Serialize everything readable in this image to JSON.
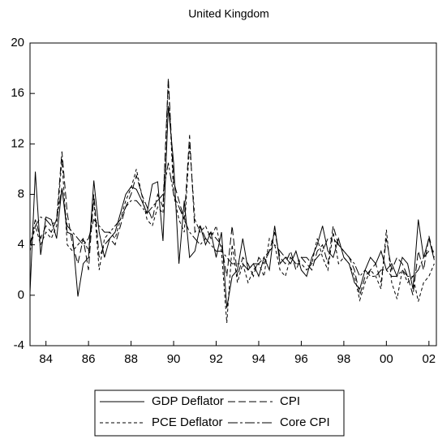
{
  "chart_data": {
    "type": "line",
    "title": "United Kingdom",
    "x": [
      1983.25,
      1983.5,
      1983.75,
      1984,
      1984.25,
      1984.5,
      1984.75,
      1985,
      1985.25,
      1985.5,
      1985.75,
      1986,
      1986.25,
      1986.5,
      1986.75,
      1987,
      1987.25,
      1987.5,
      1987.75,
      1988,
      1988.25,
      1988.5,
      1988.75,
      1989,
      1989.25,
      1989.5,
      1989.75,
      1990,
      1990.25,
      1990.5,
      1990.75,
      1991,
      1991.25,
      1991.5,
      1991.75,
      1992,
      1992.25,
      1992.5,
      1992.75,
      1993,
      1993.25,
      1993.5,
      1993.75,
      1994,
      1994.25,
      1994.5,
      1994.75,
      1995,
      1995.25,
      1995.5,
      1995.75,
      1996,
      1996.25,
      1996.5,
      1996.75,
      1997,
      1997.25,
      1997.5,
      1997.75,
      1998,
      1998.25,
      1998.5,
      1998.75,
      1999,
      1999.25,
      1999.5,
      1999.75,
      2000,
      2000.25,
      2000.5,
      2000.75,
      2001,
      2001.25,
      2001.5,
      2001.75,
      2002,
      2002.25
    ],
    "series": [
      {
        "name": "GDP Deflator",
        "color": "#000000",
        "style": "solid",
        "values": [
          0.2,
          9.8,
          3.2,
          6.2,
          6.0,
          4.5,
          8.5,
          5.0,
          4.8,
          -0.1,
          2.5,
          3.0,
          9.1,
          5.0,
          3.0,
          4.5,
          5.0,
          6.5,
          8.0,
          8.6,
          8.4,
          7.5,
          6.5,
          8.8,
          9.0,
          4.3,
          15.0,
          10.5,
          2.5,
          7.5,
          3.0,
          3.5,
          5.5,
          4.0,
          5.0,
          3.0,
          5.0,
          -1.0,
          1.5,
          2.0,
          4.5,
          2.0,
          2.5,
          1.5,
          3.0,
          2.0,
          5.5,
          2.5,
          3.0,
          2.5,
          3.5,
          2.0,
          1.5,
          3.0,
          4.0,
          5.5,
          3.5,
          3.0,
          4.5,
          3.0,
          2.5,
          1.0,
          0.5,
          2.0,
          3.0,
          2.5,
          3.5,
          2.0,
          2.5,
          1.5,
          3.0,
          2.5,
          0.5,
          6.0,
          3.0,
          4.5,
          2.8
        ]
      },
      {
        "name": "CPI",
        "color": "#000000",
        "style": "dashed",
        "values": [
          4.0,
          6.0,
          4.5,
          5.5,
          5.0,
          6.0,
          11.4,
          6.5,
          4.0,
          2.5,
          4.5,
          2.0,
          8.0,
          3.0,
          4.0,
          4.5,
          4.0,
          5.5,
          7.0,
          8.0,
          9.5,
          8.0,
          7.0,
          6.0,
          8.0,
          7.0,
          17.2,
          9.0,
          7.5,
          6.0,
          12.7,
          5.0,
          5.5,
          4.5,
          5.0,
          4.5,
          4.0,
          1.5,
          5.5,
          1.5,
          3.0,
          2.5,
          1.5,
          3.0,
          2.5,
          3.5,
          5.0,
          3.0,
          2.5,
          3.5,
          2.0,
          3.0,
          2.5,
          2.0,
          3.5,
          4.0,
          2.5,
          5.5,
          4.0,
          3.5,
          3.0,
          2.0,
          0.0,
          1.5,
          2.0,
          2.5,
          1.0,
          4.5,
          2.0,
          3.0,
          2.5,
          1.5,
          0.0,
          3.5,
          2.0,
          4.7,
          3.0
        ]
      },
      {
        "name": "PCE Deflator",
        "color": "#000000",
        "style": "dotted",
        "values": [
          3.5,
          5.5,
          4.0,
          5.0,
          4.5,
          5.5,
          10.8,
          4.0,
          3.5,
          4.0,
          4.5,
          3.5,
          7.5,
          2.0,
          4.5,
          5.0,
          4.5,
          6.0,
          7.5,
          8.5,
          10.0,
          8.0,
          6.0,
          5.5,
          7.0,
          6.5,
          17.0,
          8.0,
          6.0,
          5.0,
          12.0,
          6.0,
          5.0,
          5.5,
          4.5,
          5.5,
          3.5,
          -2.2,
          4.0,
          1.0,
          2.5,
          1.0,
          2.0,
          2.5,
          1.5,
          4.5,
          4.0,
          2.0,
          1.5,
          3.0,
          2.5,
          2.5,
          2.0,
          2.5,
          4.5,
          3.0,
          2.0,
          5.0,
          2.5,
          3.0,
          2.5,
          1.5,
          -0.4,
          1.0,
          2.0,
          1.5,
          0.5,
          5.2,
          1.0,
          -0.3,
          2.0,
          1.0,
          1.5,
          -0.5,
          1.0,
          1.5,
          2.5
        ]
      },
      {
        "name": "Core CPI",
        "color": "#000000",
        "style": "dashdot",
        "values": [
          4.0,
          5.5,
          6.2,
          6.0,
          5.5,
          6.0,
          8.5,
          5.5,
          5.0,
          4.5,
          4.0,
          4.5,
          6.0,
          5.5,
          5.0,
          5.0,
          5.5,
          6.0,
          7.0,
          7.5,
          7.5,
          7.0,
          6.5,
          7.0,
          7.5,
          8.0,
          10.5,
          8.0,
          7.0,
          6.0,
          5.0,
          4.5,
          4.0,
          4.5,
          4.0,
          3.5,
          3.5,
          3.0,
          2.5,
          2.5,
          2.5,
          2.0,
          2.5,
          2.5,
          3.0,
          3.5,
          4.0,
          3.5,
          3.0,
          3.0,
          2.5,
          3.0,
          3.0,
          2.5,
          3.0,
          3.5,
          4.5,
          4.5,
          4.0,
          3.5,
          3.0,
          2.5,
          1.5,
          2.0,
          1.5,
          1.5,
          2.0,
          2.0,
          1.5,
          1.5,
          2.0,
          1.5,
          1.5,
          2.0,
          3.0,
          3.5,
          3.5
        ]
      }
    ],
    "xlim": [
      1983.25,
      2002.35
    ],
    "xticks": [
      {
        "value": 1984,
        "label": "84"
      },
      {
        "value": 1986,
        "label": "86"
      },
      {
        "value": 1988,
        "label": "88"
      },
      {
        "value": 1990,
        "label": "90"
      },
      {
        "value": 1992,
        "label": "92"
      },
      {
        "value": 1994,
        "label": "94"
      },
      {
        "value": 1996,
        "label": "96"
      },
      {
        "value": 1998,
        "label": "98"
      },
      {
        "value": 2000,
        "label": "00"
      },
      {
        "value": 2002,
        "label": "02"
      }
    ],
    "ylim": [
      -4,
      20
    ],
    "yticks": [
      -4,
      0,
      4,
      8,
      12,
      16,
      20
    ],
    "grid": false,
    "legend": "bottom"
  }
}
